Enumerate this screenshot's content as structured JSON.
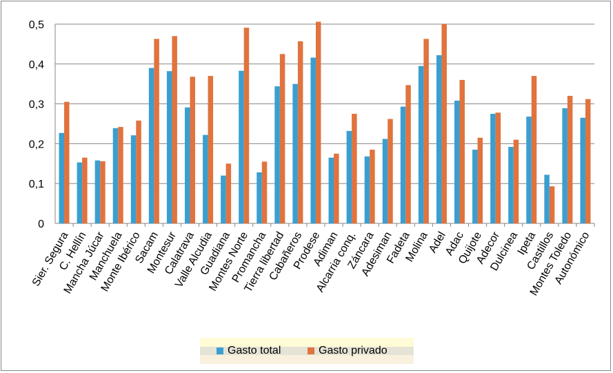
{
  "chart_data": {
    "type": "bar",
    "title": "",
    "xlabel": "",
    "ylabel": "",
    "ylim": [
      0,
      0.5
    ],
    "yticks": [
      "0",
      "0,1",
      "0,2",
      "0,3",
      "0,4",
      "0,5"
    ],
    "grid": true,
    "legend_position": "bottom",
    "categories": [
      "Sier. Segura",
      "C. Hellín",
      "Mancha Júcar",
      "Manchuela",
      "Monte Ibérico",
      "Sacam",
      "Montesur",
      "Calatrava",
      "Valle Alcudia",
      "Guadiana",
      "Montes Norte",
      "Promancha",
      "Tierra libertad",
      "Cabañeros",
      "Prodese",
      "Adiman",
      "Alcarria conq.",
      "Záncara",
      "Adesiman",
      "Fadeta",
      "Molina",
      "Adel",
      "Adac",
      "Quijote",
      "Adecor",
      "Dulcinea",
      "Ipeta",
      "Castillos",
      "Montes Toledo",
      "Autonómico"
    ],
    "series": [
      {
        "name": "Gasto total",
        "color": "#3a9fd0",
        "values": [
          0.227,
          0.153,
          0.158,
          0.239,
          0.221,
          0.39,
          0.382,
          0.291,
          0.222,
          0.12,
          0.383,
          0.128,
          0.344,
          0.35,
          0.416,
          0.165,
          0.232,
          0.168,
          0.212,
          0.293,
          0.395,
          0.422,
          0.308,
          0.185,
          0.275,
          0.192,
          0.268,
          0.122,
          0.289,
          0.265
        ]
      },
      {
        "name": "Gasto privado",
        "color": "#e0733e",
        "values": [
          0.305,
          0.165,
          0.156,
          0.242,
          0.258,
          0.463,
          0.47,
          0.368,
          0.37,
          0.15,
          0.491,
          0.155,
          0.425,
          0.457,
          0.506,
          0.175,
          0.275,
          0.185,
          0.262,
          0.347,
          0.463,
          0.5,
          0.36,
          0.215,
          0.278,
          0.21,
          0.37,
          0.093,
          0.32,
          0.312
        ]
      }
    ]
  }
}
